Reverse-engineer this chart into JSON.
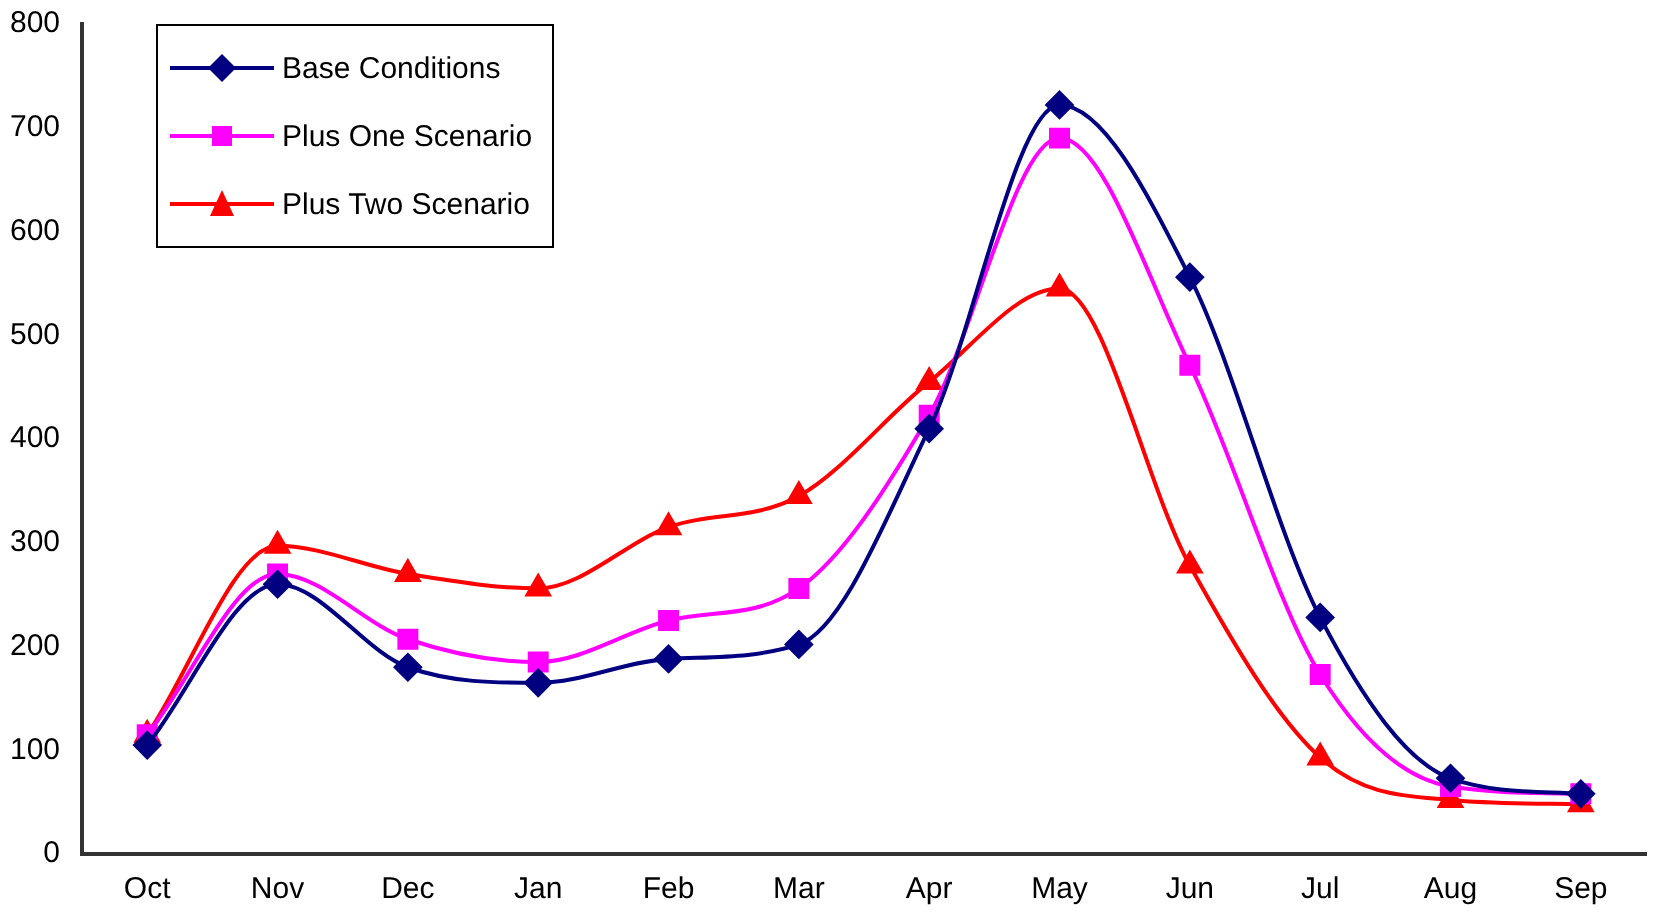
{
  "chart_data": {
    "type": "line",
    "categories": [
      "Oct",
      "Nov",
      "Dec",
      "Jan",
      "Feb",
      "Mar",
      "Apr",
      "May",
      "Jun",
      "Jul",
      "Aug",
      "Sep"
    ],
    "series": [
      {
        "name": "Base Conditions",
        "color": "#000080",
        "marker": "diamond",
        "values": [
          105,
          260,
          180,
          165,
          188,
          202,
          410,
          722,
          556,
          228,
          73,
          58
        ]
      },
      {
        "name": "Plus One Scenario",
        "color": "#ff00ff",
        "marker": "square",
        "values": [
          115,
          270,
          207,
          185,
          225,
          256,
          423,
          690,
          471,
          173,
          65,
          58
        ]
      },
      {
        "name": "Plus Two Scenario",
        "color": "#ff0000",
        "marker": "triangle",
        "values": [
          115,
          297,
          270,
          256,
          315,
          345,
          455,
          545,
          278,
          93,
          52,
          48
        ]
      }
    ],
    "ylim": [
      0,
      800
    ],
    "yticks": [
      0,
      100,
      200,
      300,
      400,
      500,
      600,
      700,
      800
    ],
    "grid": false,
    "legend": "top left"
  }
}
